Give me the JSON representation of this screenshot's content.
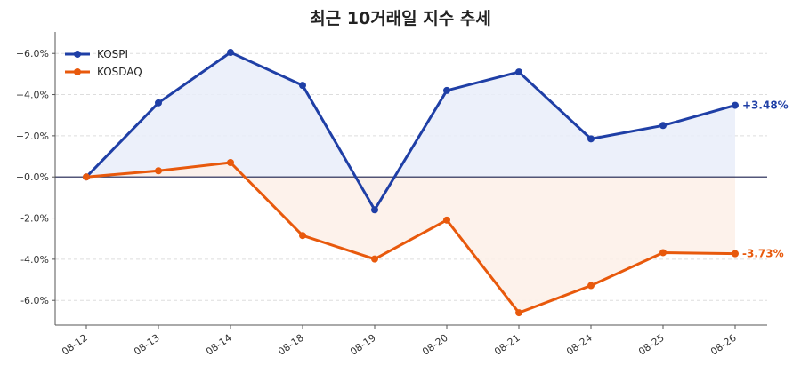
{
  "chart_data": {
    "type": "line",
    "title": "최근 10거래일 지수 추세",
    "xlabel": "",
    "ylabel": "",
    "categories": [
      "08-12",
      "08-13",
      "08-14",
      "08-18",
      "08-19",
      "08-20",
      "08-21",
      "08-24",
      "08-25",
      "08-26"
    ],
    "ylim": [
      -7.2,
      6.7
    ],
    "yticks": [
      "+6.0%",
      "+4.0%",
      "+2.0%",
      "+0.0%",
      "-2.0%",
      "-4.0%",
      "-6.0%"
    ],
    "ytick_values": [
      6,
      4,
      2,
      0,
      -2,
      -4,
      -6
    ],
    "grid": true,
    "legend_position": "top-left",
    "series": [
      {
        "name": "KOSPI",
        "color": "#1f3fa6",
        "fill": "#e9edf9",
        "values": [
          0.0,
          3.6,
          6.05,
          4.45,
          -1.6,
          4.2,
          5.1,
          1.85,
          2.5,
          3.48
        ],
        "end_label": "+3.48%"
      },
      {
        "name": "KOSDAQ",
        "color": "#e8590c",
        "fill": "#fdf0e7",
        "values": [
          0.0,
          0.3,
          0.7,
          -2.85,
          -3.99,
          -2.1,
          -6.6,
          -5.28,
          -3.68,
          -3.73
        ],
        "end_label": "-3.73%"
      }
    ]
  }
}
